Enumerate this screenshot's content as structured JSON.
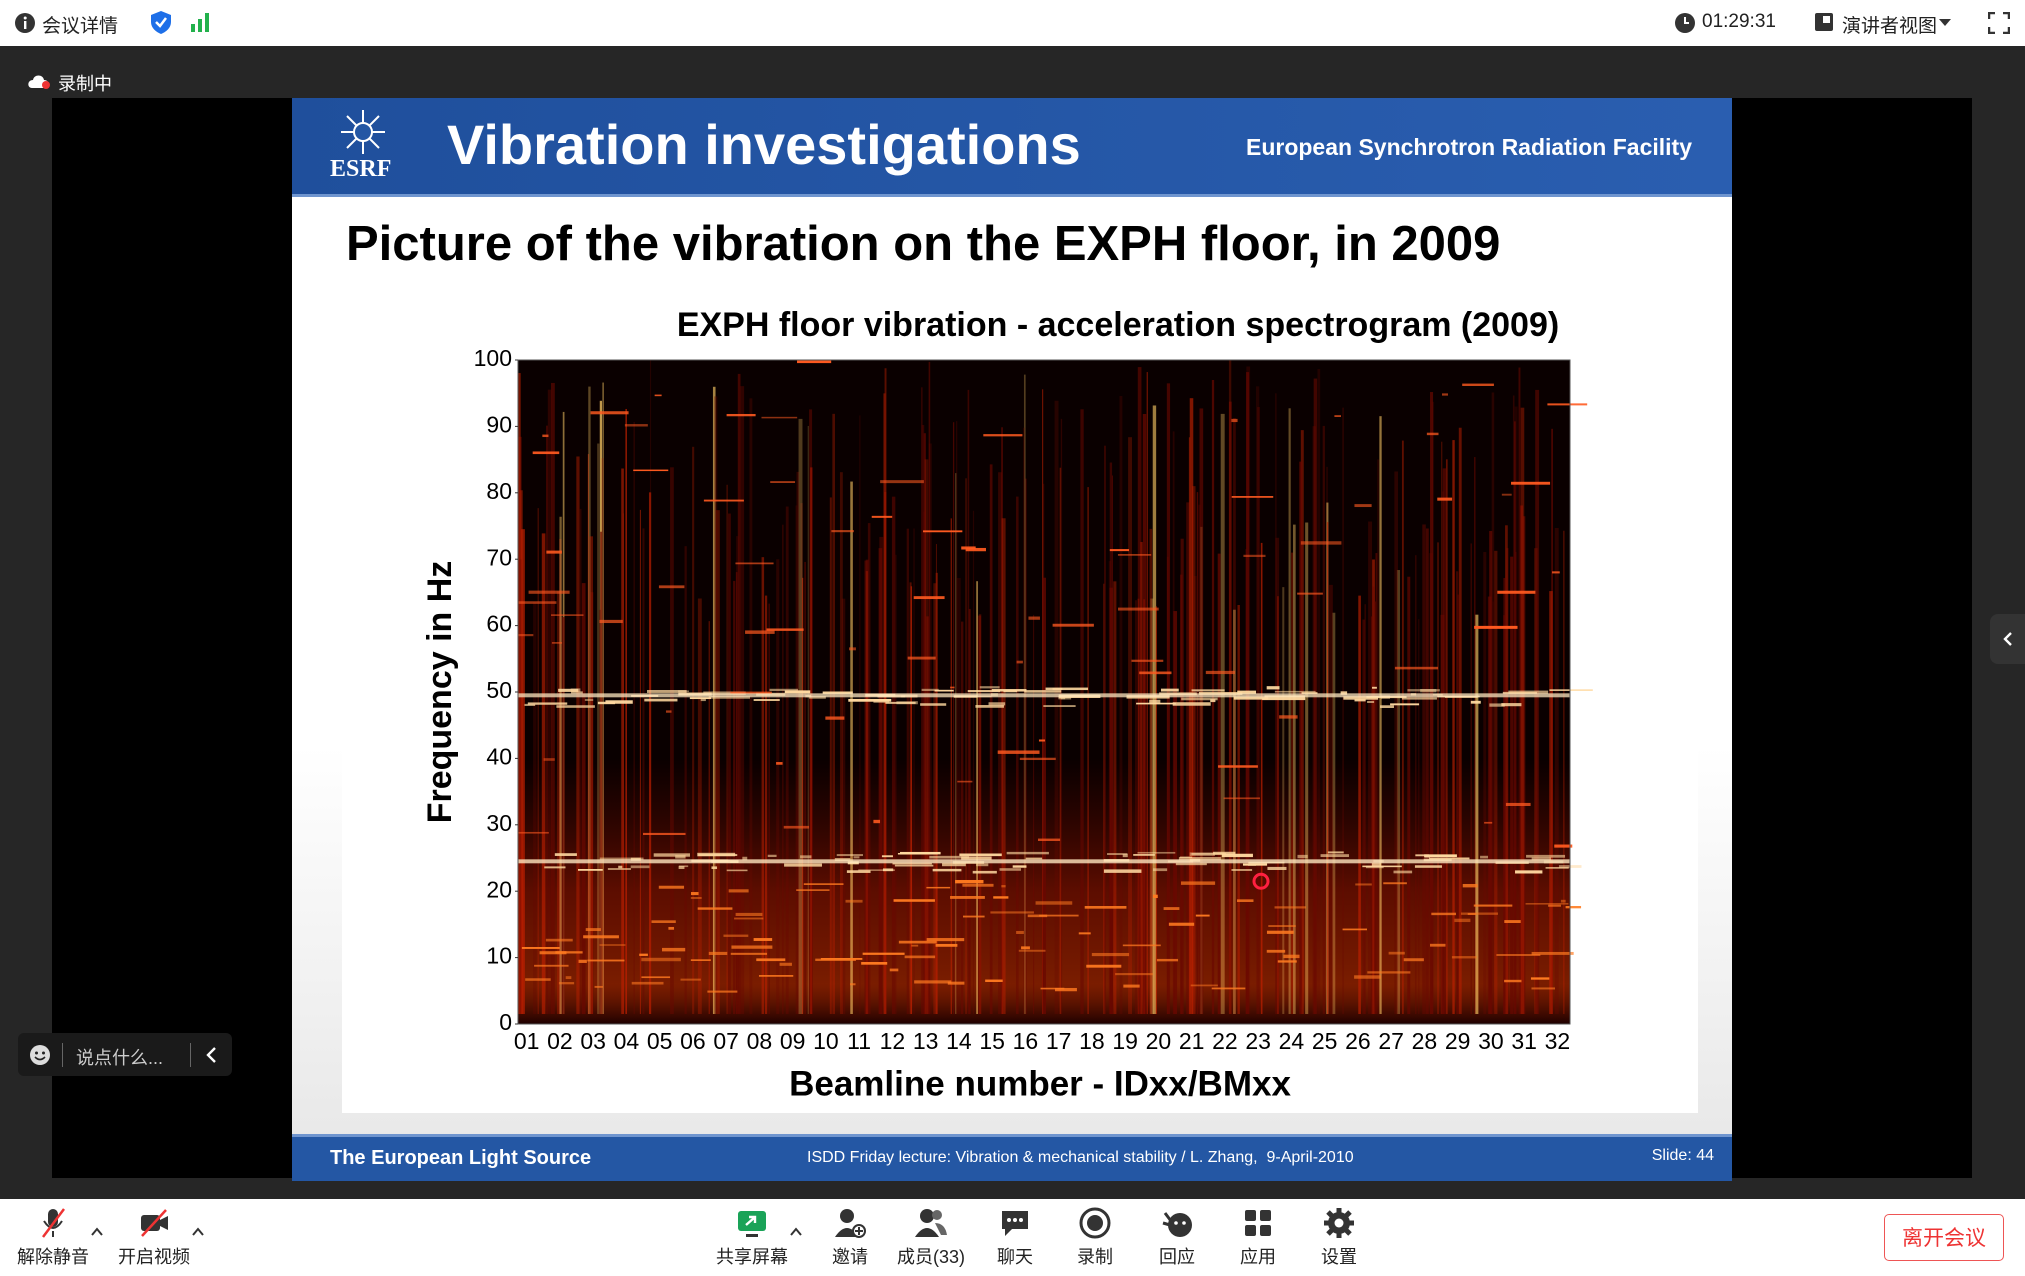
{
  "top_bar": {
    "meeting_info": "会议详情",
    "timer": "01:29:31",
    "view": "演讲者视图"
  },
  "recording": "录制中",
  "slide": {
    "logo": "ESRF",
    "title": "Vibration investigations",
    "org": "European Synchrotron Radiation Facility",
    "heading": "Picture of the vibration on the EXPH floor, in 2009",
    "chart": {
      "type": "heatmap",
      "title": "EXPH floor vibration - acceleration spectrogram (2009)",
      "ylabel": "Frequency in Hz",
      "xlabel": "Beamline number - IDxx/BMxx",
      "ylim": [
        0,
        100
      ],
      "yticks": [
        0,
        10,
        20,
        30,
        40,
        50,
        60,
        70,
        80,
        90,
        100
      ],
      "categories": [
        "01",
        "02",
        "03",
        "04",
        "05",
        "06",
        "07",
        "08",
        "09",
        "10",
        "11",
        "12",
        "13",
        "14",
        "15",
        "16",
        "17",
        "18",
        "19",
        "20",
        "21",
        "22",
        "23",
        "24",
        "25",
        "26",
        "27",
        "28",
        "29",
        "30",
        "31",
        "32"
      ]
    },
    "footer_left": "The European Light Source",
    "footer_center": "ISDD Friday lecture: Vibration & mechanical stability / L. Zhang,  9-April-2010",
    "footer_right": "Slide: 44"
  },
  "chat_input": "说点什么...",
  "toolbar": [
    "解除静音",
    "开启视频",
    "共享屏幕",
    "邀请",
    "成员(33)",
    "聊天",
    "录制",
    "回应",
    "应用",
    "设置"
  ],
  "leave": "离开会议"
}
